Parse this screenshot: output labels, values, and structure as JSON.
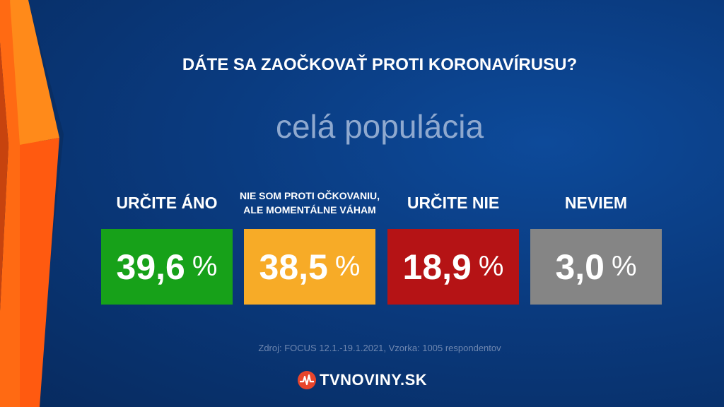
{
  "title": "DÁTE SA ZAOČKOVAŤ PROTI KORONAVÍRUSU?",
  "subtitle": "celá populácia",
  "chart_data": {
    "type": "bar",
    "title": "DÁTE SA ZAOČKOVAŤ PROTI KORONAVÍRUSU?",
    "subtitle": "celá populácia",
    "categories": [
      "URČITE ÁNO",
      "NIE SOM PROTI OČKOVANIU, ALE MOMENTÁLNE VÁHAM",
      "URČITE NIE",
      "NEVIEM"
    ],
    "category_lines": [
      [
        "URČITE ÁNO"
      ],
      [
        "NIE SOM PROTI OČKOVANIU,",
        "ALE MOMENTÁLNE VÁHAM"
      ],
      [
        "URČITE NIE"
      ],
      [
        "NEVIEM"
      ]
    ],
    "values": [
      39.6,
      38.5,
      18.9,
      3.0
    ],
    "value_labels": [
      "39,6",
      "38,5",
      "18,9",
      "3,0"
    ],
    "unit": "%",
    "colors": [
      "#17a119",
      "#f7ab27",
      "#b51315",
      "#858585"
    ]
  },
  "source": "Zdroj: FOCUS 12.1.-19.1.2021, Vzorka: 1005 respondentov",
  "brand": {
    "text": "TVNOVINY.SK",
    "icon": "tvnoviny-logo-icon"
  }
}
